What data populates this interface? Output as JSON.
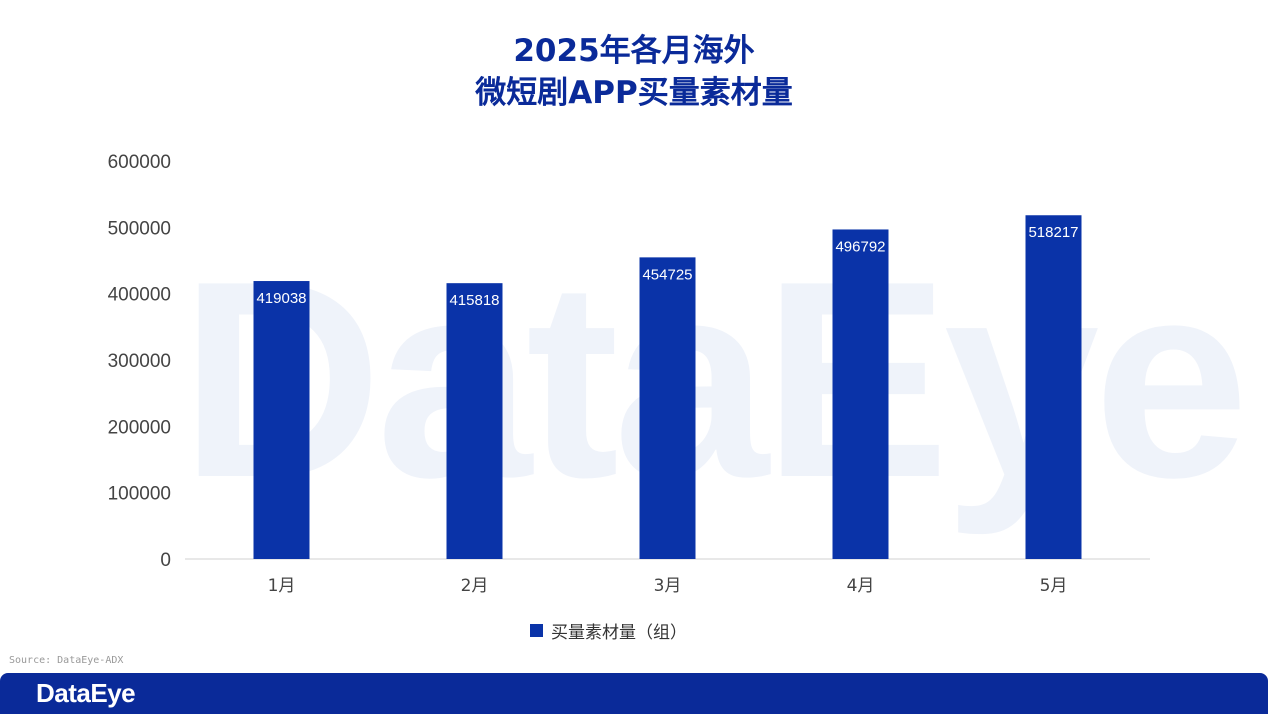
{
  "header": {
    "title_line1": "2025年各月海外",
    "title_line2": "微短剧APP买量素材量"
  },
  "watermark": "DataEye",
  "source": "Source: DataEye-ADX",
  "footer": {
    "logo": "DataEye"
  },
  "colors": {
    "bar": "#0a33a8",
    "title": "#0a2a99",
    "footer": "#0a2a99"
  },
  "chart_data": {
    "type": "bar",
    "categories": [
      "1月",
      "2月",
      "3月",
      "4月",
      "5月"
    ],
    "series": [
      {
        "name": "买量素材量（组）",
        "values": [
          419038,
          415818,
          454725,
          496792,
          518217
        ]
      }
    ],
    "yticks": [
      "0",
      "100000",
      "200000",
      "300000",
      "400000",
      "500000",
      "600000"
    ],
    "ylim": [
      0,
      600000
    ],
    "grid": false,
    "legend": "bottom"
  }
}
